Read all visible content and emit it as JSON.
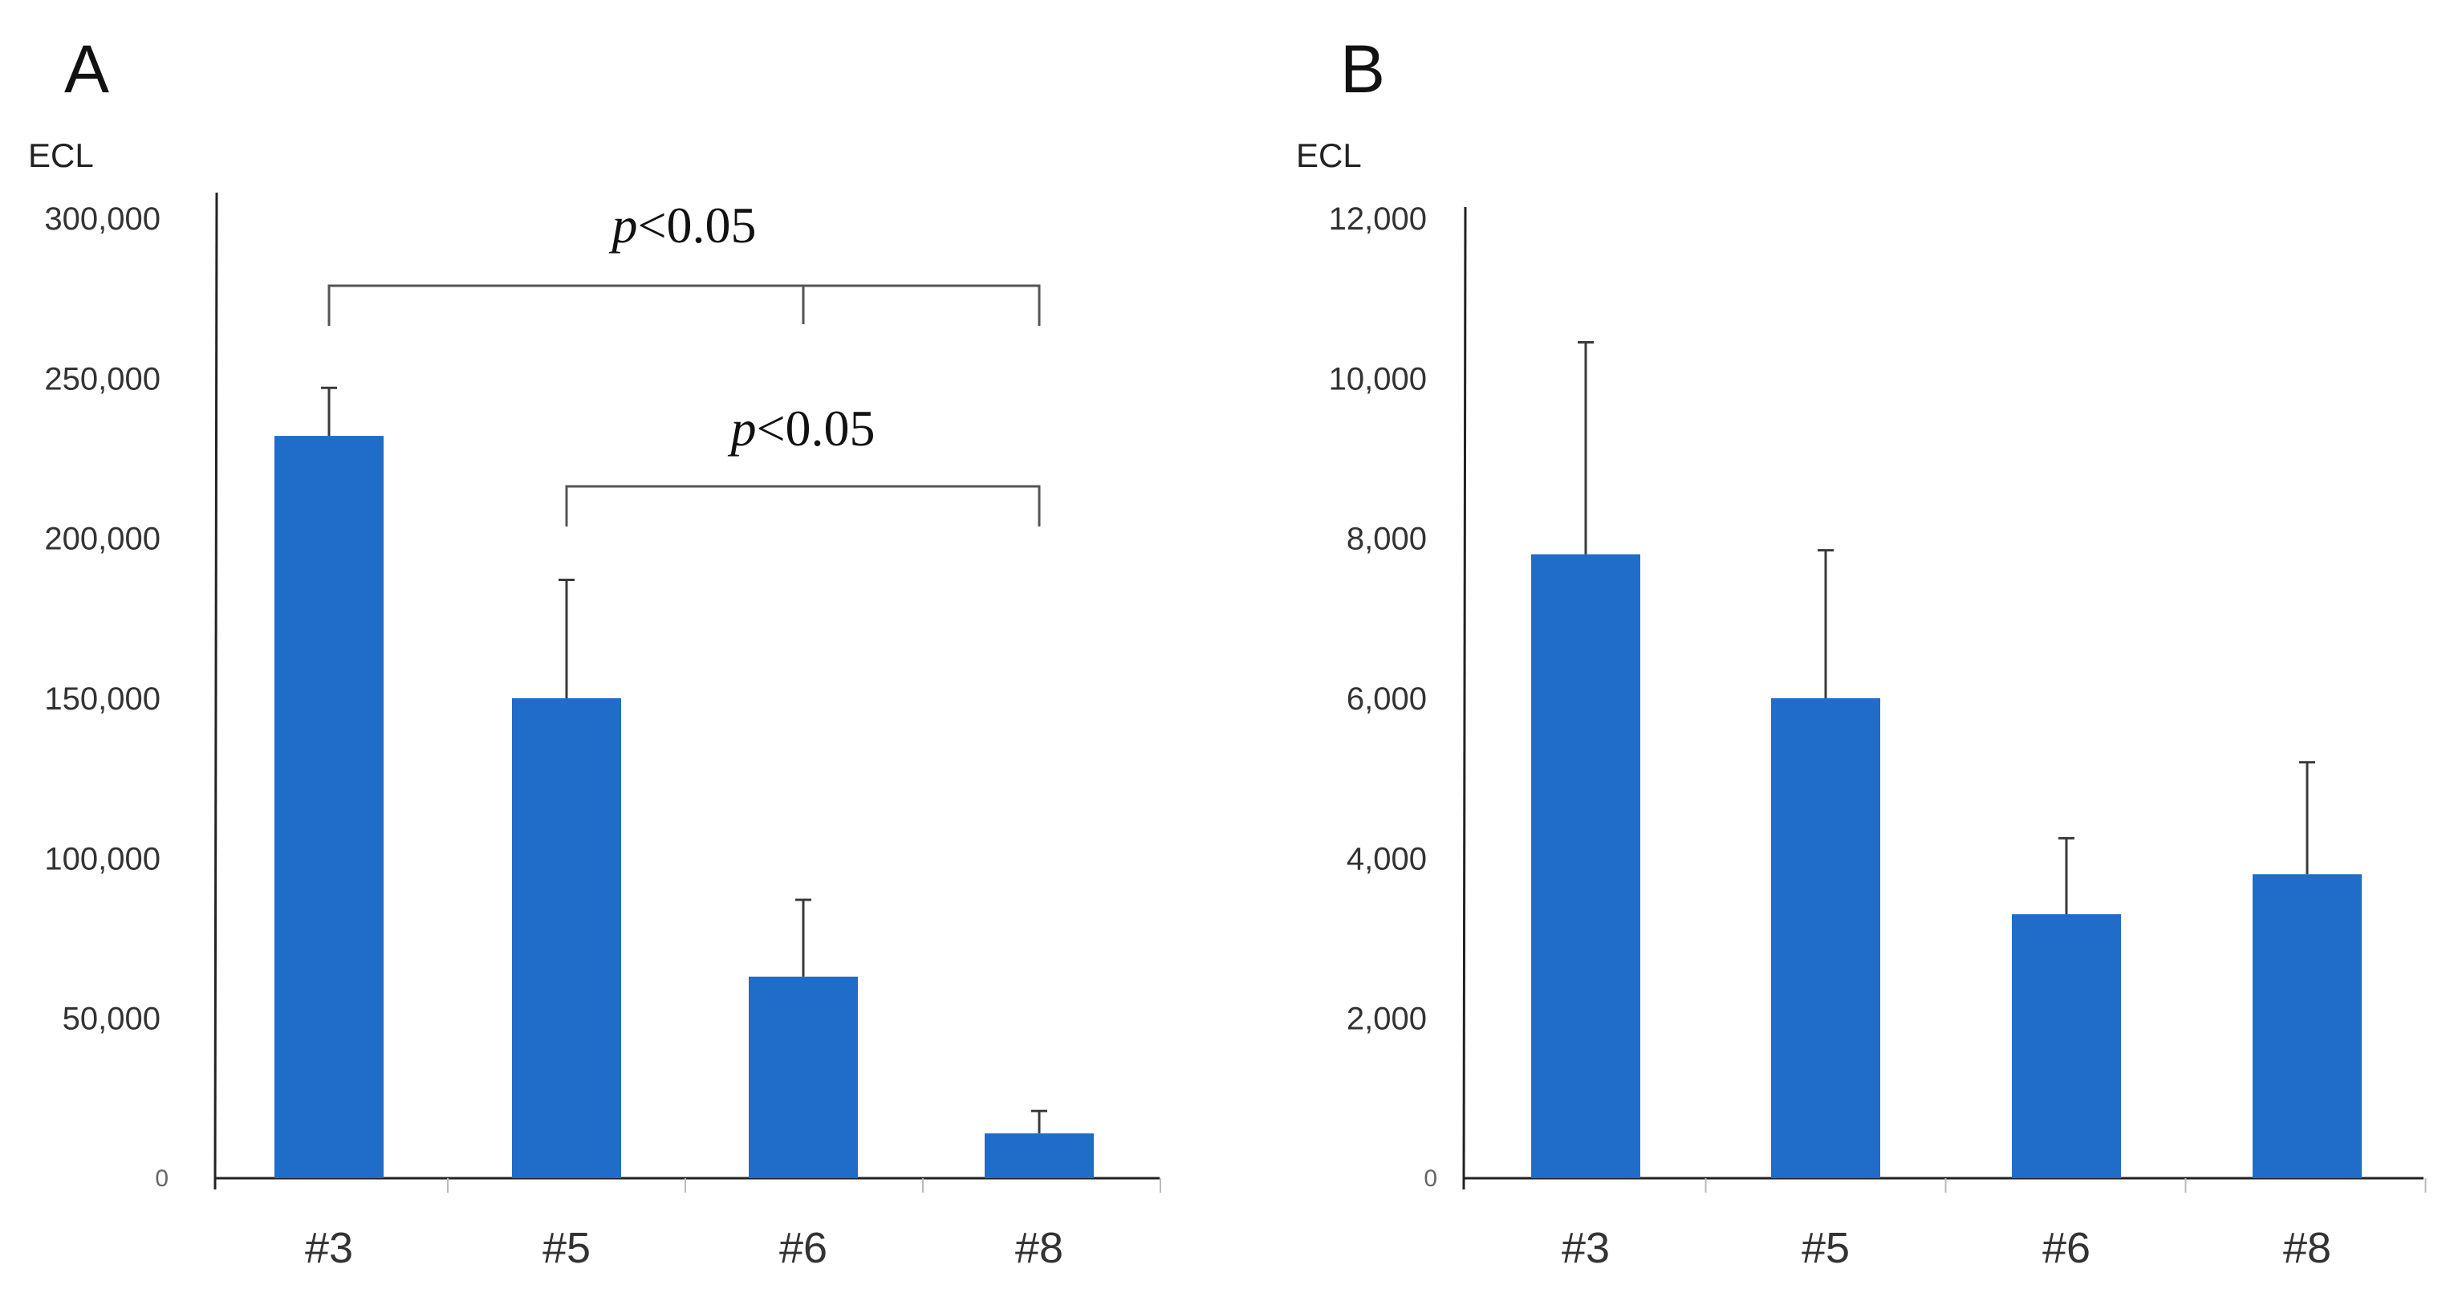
{
  "chart_data": [
    {
      "panel": "A",
      "type": "bar",
      "title": "",
      "ylabel": "ECL",
      "xlabel": "",
      "categories": [
        "#3",
        "#5",
        "#6",
        "#8"
      ],
      "values": [
        232000,
        150000,
        63000,
        14000
      ],
      "errors": [
        15000,
        37000,
        24000,
        7000
      ],
      "ylim": [
        0,
        300000
      ],
      "yticks": [
        0,
        50000,
        100000,
        150000,
        200000,
        250000,
        300000
      ],
      "ytick_labels": [
        "0",
        "50,000",
        "100,000",
        "150,000",
        "200,000",
        "250,000",
        "300,000"
      ],
      "bar_color": "#1f6dc8",
      "grid": false,
      "annotations": [
        {
          "label_p": "p",
          "label_rest": "<0.05",
          "from": "#3",
          "to": "#8",
          "middle": "#6"
        },
        {
          "label_p": "p",
          "label_rest": "<0.05",
          "from": "#5",
          "to": "#8"
        }
      ]
    },
    {
      "panel": "B",
      "type": "bar",
      "title": "",
      "ylabel": "ECL",
      "xlabel": "",
      "categories": [
        "#3",
        "#5",
        "#6",
        "#8"
      ],
      "values": [
        7800,
        6000,
        3300,
        3800
      ],
      "errors": [
        2650,
        1850,
        950,
        1400
      ],
      "ylim": [
        0,
        12000
      ],
      "yticks": [
        0,
        2000,
        4000,
        6000,
        8000,
        10000,
        12000
      ],
      "ytick_labels": [
        "0",
        "2,000",
        "4,000",
        "6,000",
        "8,000",
        "10,000",
        "12,000"
      ],
      "bar_color": "#1f6dc8",
      "grid": false,
      "annotations": []
    }
  ]
}
